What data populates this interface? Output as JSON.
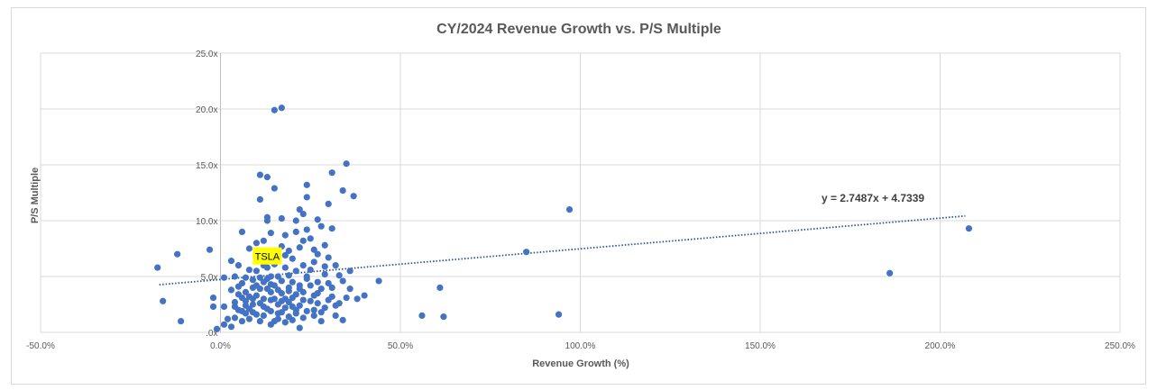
{
  "chart_data": {
    "type": "scatter",
    "title": "CY/2024 Revenue Growth vs. P/S Multiple",
    "xlabel": "Revenue Growth (%)",
    "ylabel": "P/S Multiple",
    "xlim": [
      -50,
      250
    ],
    "ylim": [
      0,
      25
    ],
    "x_ticks": [
      -50,
      0,
      50,
      100,
      150,
      200,
      250
    ],
    "x_tick_labels": [
      "-50.0%",
      "0.0%",
      "50.0%",
      "100.0%",
      "150.0%",
      "200.0%",
      "250.0%"
    ],
    "y_ticks": [
      0,
      5,
      10,
      15,
      20,
      25
    ],
    "y_tick_labels": [
      ".0x",
      "5.0x",
      "10.0x",
      "15.0x",
      "20.0x",
      "25.0x"
    ],
    "grid": true,
    "marker_color": "#4472c4",
    "trendline": {
      "slope": 2.7487,
      "intercept": 4.7339,
      "x_range": [
        -17,
        207
      ],
      "color": "#2e5597",
      "equation_label": "y = 2.7487x + 4.7339"
    },
    "annotation": {
      "text": "TSLA",
      "x": 13,
      "y": 6.8,
      "bg": "#ffff00"
    },
    "points": [
      [
        -17.5,
        5.8
      ],
      [
        -16,
        2.8
      ],
      [
        -12,
        7.0
      ],
      [
        -11,
        1.0
      ],
      [
        -3,
        7.4
      ],
      [
        -2,
        3.1
      ],
      [
        -2,
        2.3
      ],
      [
        -1,
        0.3
      ],
      [
        1,
        2.3
      ],
      [
        1,
        0.7
      ],
      [
        1,
        4.9
      ],
      [
        3,
        6.4
      ],
      [
        4,
        2.3
      ],
      [
        4,
        1.3
      ],
      [
        5,
        6.0
      ],
      [
        5,
        3.4
      ],
      [
        6,
        9.0
      ],
      [
        6,
        4.4
      ],
      [
        7,
        1.7
      ],
      [
        7,
        2.8
      ],
      [
        8,
        7.5
      ],
      [
        8,
        3.2
      ],
      [
        9,
        4.0
      ],
      [
        9,
        1.8
      ],
      [
        10,
        5.5
      ],
      [
        10,
        7.0
      ],
      [
        10,
        8.0
      ],
      [
        11,
        3.9
      ],
      [
        11,
        1.0
      ],
      [
        11,
        14.1
      ],
      [
        11,
        11.9
      ],
      [
        12,
        6.0
      ],
      [
        12,
        4.5
      ],
      [
        12,
        1.5
      ],
      [
        13,
        13.9
      ],
      [
        13,
        10.3
      ],
      [
        13,
        10.0
      ],
      [
        13,
        4.8
      ],
      [
        14,
        8.9
      ],
      [
        14,
        5.0
      ],
      [
        14,
        3.6
      ],
      [
        14,
        1.9
      ],
      [
        15,
        12.9
      ],
      [
        15,
        19.9
      ],
      [
        15,
        6.1
      ],
      [
        16,
        5.0
      ],
      [
        16,
        2.5
      ],
      [
        16,
        1.2
      ],
      [
        17,
        20.1
      ],
      [
        17,
        10.2
      ],
      [
        17,
        7.7
      ],
      [
        17,
        3.5
      ],
      [
        18,
        8.7
      ],
      [
        18,
        5.8
      ],
      [
        18,
        2.2
      ],
      [
        19,
        7.3
      ],
      [
        19,
        4.0
      ],
      [
        19,
        1.4
      ],
      [
        20,
        6.6
      ],
      [
        20,
        3.1
      ],
      [
        21,
        10.0
      ],
      [
        21,
        9.0
      ],
      [
        21,
        5.5
      ],
      [
        21,
        2.0
      ],
      [
        22,
        11.0
      ],
      [
        22,
        7.6
      ],
      [
        22,
        4.2
      ],
      [
        22,
        0.4
      ],
      [
        23,
        10.6
      ],
      [
        23,
        8.2
      ],
      [
        23,
        6.0
      ],
      [
        23,
        3.6
      ],
      [
        24,
        13.2
      ],
      [
        24,
        12.1
      ],
      [
        24,
        9.2
      ],
      [
        24,
        5.0
      ],
      [
        25,
        8.4
      ],
      [
        25,
        2.8
      ],
      [
        26,
        6.3
      ],
      [
        26,
        3.3
      ],
      [
        27,
        10.1
      ],
      [
        27,
        7.0
      ],
      [
        27,
        4.5
      ],
      [
        28,
        1.0
      ],
      [
        28,
        9.5
      ],
      [
        29,
        7.8
      ],
      [
        29,
        5.2
      ],
      [
        30,
        11.5
      ],
      [
        30,
        6.7
      ],
      [
        31,
        14.3
      ],
      [
        31,
        9.3
      ],
      [
        31,
        4.0
      ],
      [
        32,
        6.0
      ],
      [
        32,
        1.5
      ],
      [
        34,
        12.7
      ],
      [
        34,
        4.6
      ],
      [
        35,
        15.1
      ],
      [
        35,
        3.1
      ],
      [
        36,
        5.5
      ],
      [
        37,
        12.2
      ],
      [
        40,
        3.3
      ],
      [
        44,
        4.6
      ],
      [
        56,
        1.5
      ],
      [
        61,
        4.0
      ],
      [
        62,
        1.4
      ],
      [
        85,
        7.2
      ],
      [
        94,
        1.6
      ],
      [
        97,
        11.0
      ],
      [
        186,
        5.3
      ],
      [
        208,
        9.3
      ],
      [
        2,
        1.2
      ],
      [
        3,
        3.8
      ],
      [
        4,
        5.0
      ],
      [
        5,
        2.0
      ],
      [
        6,
        3.1
      ],
      [
        6,
        1.0
      ],
      [
        7,
        4.9
      ],
      [
        7,
        2.4
      ],
      [
        8,
        5.6
      ],
      [
        8,
        1.2
      ],
      [
        9,
        2.5
      ],
      [
        9,
        4.7
      ],
      [
        10,
        3.3
      ],
      [
        10,
        1.6
      ],
      [
        11,
        6.6
      ],
      [
        11,
        2.6
      ],
      [
        12,
        3.0
      ],
      [
        12,
        8.2
      ],
      [
        13,
        2.1
      ],
      [
        13,
        5.8
      ],
      [
        14,
        2.9
      ],
      [
        14,
        0.7
      ],
      [
        15,
        4.2
      ],
      [
        15,
        3.0
      ],
      [
        16,
        3.8
      ],
      [
        16,
        6.5
      ],
      [
        17,
        1.8
      ],
      [
        17,
        4.6
      ],
      [
        18,
        3.0
      ],
      [
        18,
        0.9
      ],
      [
        19,
        2.7
      ],
      [
        19,
        5.1
      ],
      [
        20,
        4.5
      ],
      [
        20,
        1.1
      ],
      [
        21,
        3.4
      ],
      [
        22,
        2.4
      ],
      [
        23,
        1.3
      ],
      [
        24,
        4.8
      ],
      [
        25,
        5.6
      ],
      [
        26,
        1.5
      ],
      [
        27,
        2.6
      ],
      [
        28,
        3.9
      ],
      [
        29,
        2.2
      ],
      [
        30,
        4.4
      ],
      [
        31,
        3.2
      ],
      [
        33,
        2.6
      ],
      [
        33,
        5.1
      ],
      [
        36,
        3.9
      ],
      [
        3,
        0.5
      ],
      [
        4,
        2.7
      ],
      [
        5,
        4.1
      ],
      [
        6,
        1.9
      ],
      [
        7,
        3.6
      ],
      [
        8,
        2.1
      ],
      [
        9,
        3.0
      ],
      [
        10,
        4.2
      ],
      [
        11,
        4.9
      ],
      [
        12,
        2.3
      ],
      [
        13,
        3.9
      ],
      [
        14,
        4.3
      ],
      [
        15,
        1.0
      ],
      [
        16,
        1.7
      ],
      [
        17,
        2.8
      ],
      [
        18,
        6.9
      ],
      [
        19,
        3.7
      ],
      [
        20,
        2.3
      ],
      [
        21,
        1.7
      ],
      [
        22,
        3.9
      ],
      [
        23,
        2.9
      ],
      [
        24,
        1.9
      ],
      [
        25,
        4.2
      ],
      [
        26,
        2.0
      ],
      [
        27,
        3.5
      ],
      [
        28,
        1.8
      ],
      [
        29,
        5.9
      ],
      [
        30,
        2.9
      ],
      [
        32,
        2.4
      ],
      [
        34,
        1.1
      ],
      [
        38,
        3.0
      ],
      [
        26,
        7.4
      ]
    ]
  }
}
